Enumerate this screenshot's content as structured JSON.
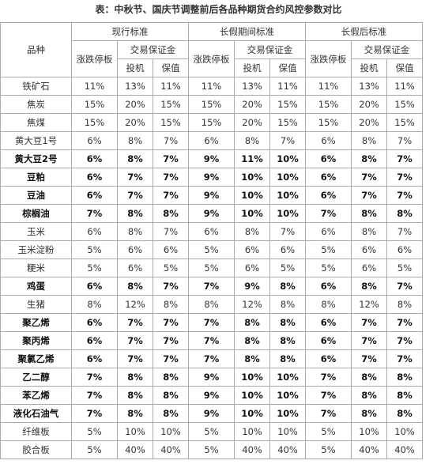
{
  "title": "表：中秋节、国庆节调整前后各品种期货合约风控参数对比",
  "table": {
    "header": {
      "variety": "品种",
      "groups": [
        "现行标准",
        "长假期间标准",
        "长假后标准"
      ],
      "limit": "涨跌停板",
      "margin": "交易保证金",
      "speculation": "投机",
      "hedging": "保值"
    },
    "rows": [
      {
        "name": "铁矿石",
        "bold": false,
        "cells": [
          "11%",
          "13%",
          "11%",
          "11%",
          "13%",
          "11%",
          "11%",
          "13%",
          "11%"
        ]
      },
      {
        "name": "焦炭",
        "bold": false,
        "cells": [
          "15%",
          "20%",
          "15%",
          "15%",
          "20%",
          "15%",
          "15%",
          "20%",
          "15%"
        ]
      },
      {
        "name": "焦煤",
        "bold": false,
        "cells": [
          "15%",
          "20%",
          "15%",
          "15%",
          "20%",
          "15%",
          "15%",
          "20%",
          "15%"
        ]
      },
      {
        "name": "黄大豆1号",
        "bold": false,
        "cells": [
          "6%",
          "8%",
          "7%",
          "6%",
          "8%",
          "7%",
          "6%",
          "8%",
          "7%"
        ]
      },
      {
        "name": "黄大豆2号",
        "bold": true,
        "cells": [
          "6%",
          "8%",
          "7%",
          "9%",
          "11%",
          "10%",
          "6%",
          "8%",
          "7%"
        ]
      },
      {
        "name": "豆粕",
        "bold": true,
        "cells": [
          "6%",
          "7%",
          "7%",
          "9%",
          "10%",
          "10%",
          "6%",
          "7%",
          "7%"
        ]
      },
      {
        "name": "豆油",
        "bold": true,
        "cells": [
          "6%",
          "7%",
          "7%",
          "9%",
          "10%",
          "10%",
          "6%",
          "7%",
          "7%"
        ]
      },
      {
        "name": "棕榈油",
        "bold": true,
        "cells": [
          "7%",
          "8%",
          "8%",
          "9%",
          "10%",
          "10%",
          "7%",
          "8%",
          "8%"
        ]
      },
      {
        "name": "玉米",
        "bold": false,
        "cells": [
          "6%",
          "8%",
          "7%",
          "6%",
          "8%",
          "7%",
          "6%",
          "8%",
          "7%"
        ]
      },
      {
        "name": "玉米淀粉",
        "bold": false,
        "cells": [
          "5%",
          "6%",
          "6%",
          "5%",
          "6%",
          "6%",
          "5%",
          "6%",
          "6%"
        ]
      },
      {
        "name": "粳米",
        "bold": false,
        "cells": [
          "5%",
          "6%",
          "5%",
          "5%",
          "6%",
          "5%",
          "5%",
          "6%",
          "5%"
        ]
      },
      {
        "name": "鸡蛋",
        "bold": true,
        "cells": [
          "6%",
          "8%",
          "7%",
          "7%",
          "9%",
          "8%",
          "6%",
          "8%",
          "7%"
        ]
      },
      {
        "name": "生猪",
        "bold": false,
        "cells": [
          "8%",
          "12%",
          "8%",
          "8%",
          "12%",
          "8%",
          "8%",
          "12%",
          "8%"
        ]
      },
      {
        "name": "聚乙烯",
        "bold": true,
        "cells": [
          "6%",
          "7%",
          "7%",
          "7%",
          "8%",
          "8%",
          "6%",
          "7%",
          "7%"
        ]
      },
      {
        "name": "聚丙烯",
        "bold": true,
        "cells": [
          "6%",
          "7%",
          "7%",
          "7%",
          "8%",
          "8%",
          "6%",
          "7%",
          "7%"
        ]
      },
      {
        "name": "聚氯乙烯",
        "bold": true,
        "cells": [
          "6%",
          "7%",
          "7%",
          "7%",
          "8%",
          "8%",
          "6%",
          "7%",
          "7%"
        ]
      },
      {
        "name": "乙二醇",
        "bold": true,
        "cells": [
          "7%",
          "8%",
          "8%",
          "9%",
          "10%",
          "10%",
          "7%",
          "8%",
          "8%"
        ]
      },
      {
        "name": "苯乙烯",
        "bold": true,
        "cells": [
          "7%",
          "8%",
          "8%",
          "9%",
          "10%",
          "10%",
          "7%",
          "8%",
          "8%"
        ]
      },
      {
        "name": "液化石油气",
        "bold": true,
        "cells": [
          "7%",
          "8%",
          "8%",
          "9%",
          "10%",
          "10%",
          "7%",
          "8%",
          "8%"
        ]
      },
      {
        "name": "纤维板",
        "bold": false,
        "cells": [
          "5%",
          "10%",
          "10%",
          "5%",
          "10%",
          "10%",
          "5%",
          "10%",
          "10%"
        ]
      },
      {
        "name": "胶合板",
        "bold": false,
        "cells": [
          "5%",
          "40%",
          "40%",
          "5%",
          "40%",
          "40%",
          "5%",
          "40%",
          "40%"
        ]
      }
    ]
  }
}
